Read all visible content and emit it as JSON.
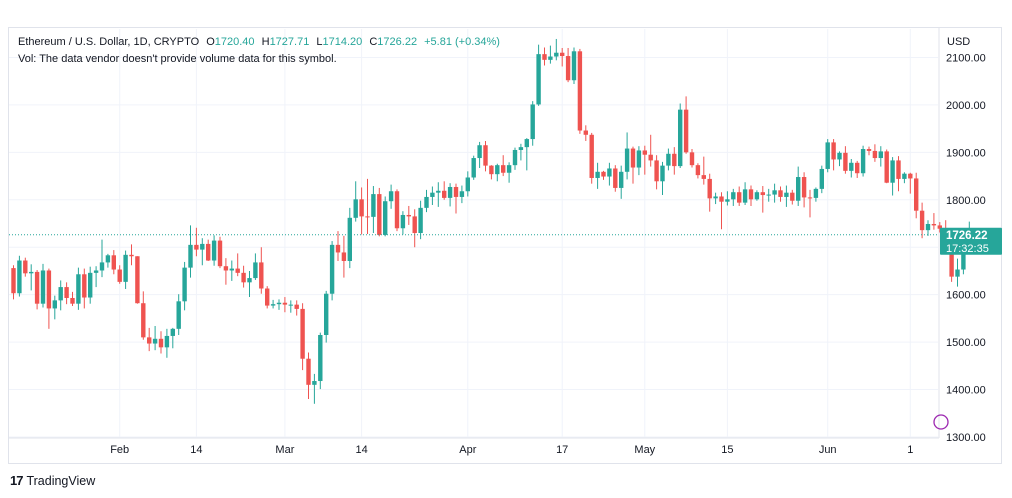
{
  "header": {
    "symbol_title": "Ethereum / U.S. Dollar, 1D, CRYPTO",
    "open_label": "O",
    "open_value": "1720.40",
    "high_label": "H",
    "high_value": "1727.71",
    "low_label": "L",
    "low_value": "1714.20",
    "close_label": "C",
    "close_value": "1726.22",
    "change": "+5.81 (+0.34%)",
    "volume_note": "Vol: The data vendor doesn't provide volume data for this symbol."
  },
  "price_axis": {
    "currency": "USD"
  },
  "last_price": {
    "value": "1726.22",
    "countdown": "17:32:35"
  },
  "footer": {
    "logo_glyph": "17",
    "brand": "TradingView"
  },
  "colors": {
    "up": "#26a69a",
    "down": "#ef5350",
    "grid": "#f0f3fa",
    "axis_text": "#131722",
    "label_bg": "#26a69a"
  },
  "chart_data": {
    "type": "candlestick",
    "title": "Ethereum / U.S. Dollar, 1D, CRYPTO",
    "ylabel": "USD",
    "ylim": [
      1300,
      2160
    ],
    "y_ticks": [
      "1300.00",
      "1400.00",
      "1500.00",
      "1600.00",
      "1700.00",
      "1800.00",
      "1900.00",
      "2000.00",
      "2100.00"
    ],
    "x_ticks": [
      {
        "label": "Feb",
        "index": 18
      },
      {
        "label": "14",
        "index": 31
      },
      {
        "label": "Mar",
        "index": 46
      },
      {
        "label": "14",
        "index": 59
      },
      {
        "label": "Apr",
        "index": 77
      },
      {
        "label": "17",
        "index": 93
      },
      {
        "label": "May",
        "index": 107
      },
      {
        "label": "15",
        "index": 121
      },
      {
        "label": "Jun",
        "index": 138
      },
      {
        "label": "1",
        "index": 152
      }
    ],
    "last_close": 1726.22,
    "candles_ohlc": [
      [
        1656,
        1662,
        1590,
        1603
      ],
      [
        1603,
        1682,
        1596,
        1672
      ],
      [
        1672,
        1678,
        1638,
        1645
      ],
      [
        1645,
        1664,
        1609,
        1648
      ],
      [
        1648,
        1652,
        1569,
        1581
      ],
      [
        1581,
        1665,
        1573,
        1651
      ],
      [
        1651,
        1655,
        1528,
        1571
      ],
      [
        1571,
        1598,
        1548,
        1588
      ],
      [
        1588,
        1630,
        1567,
        1616
      ],
      [
        1616,
        1626,
        1580,
        1593
      ],
      [
        1593,
        1606,
        1576,
        1581
      ],
      [
        1581,
        1657,
        1568,
        1643
      ],
      [
        1643,
        1655,
        1571,
        1594
      ],
      [
        1594,
        1659,
        1581,
        1646
      ],
      [
        1646,
        1660,
        1616,
        1651
      ],
      [
        1651,
        1716,
        1637,
        1668
      ],
      [
        1668,
        1686,
        1657,
        1683
      ],
      [
        1683,
        1694,
        1643,
        1653
      ],
      [
        1653,
        1662,
        1623,
        1627
      ],
      [
        1627,
        1693,
        1612,
        1684
      ],
      [
        1684,
        1706,
        1662,
        1681
      ],
      [
        1681,
        1681,
        1581,
        1582
      ],
      [
        1582,
        1607,
        1505,
        1510
      ],
      [
        1510,
        1530,
        1481,
        1497
      ],
      [
        1497,
        1534,
        1483,
        1507
      ],
      [
        1507,
        1523,
        1476,
        1489
      ],
      [
        1489,
        1528,
        1467,
        1513
      ],
      [
        1513,
        1530,
        1487,
        1528
      ],
      [
        1528,
        1601,
        1515,
        1586
      ],
      [
        1586,
        1669,
        1567,
        1657
      ],
      [
        1657,
        1746,
        1636,
        1705
      ],
      [
        1705,
        1741,
        1681,
        1695
      ],
      [
        1695,
        1719,
        1662,
        1707
      ],
      [
        1707,
        1716,
        1671,
        1672
      ],
      [
        1672,
        1725,
        1661,
        1714
      ],
      [
        1714,
        1722,
        1656,
        1660
      ],
      [
        1660,
        1677,
        1621,
        1651
      ],
      [
        1651,
        1672,
        1629,
        1655
      ],
      [
        1655,
        1687,
        1639,
        1646
      ],
      [
        1646,
        1661,
        1615,
        1626
      ],
      [
        1626,
        1650,
        1595,
        1635
      ],
      [
        1635,
        1687,
        1631,
        1668
      ],
      [
        1668,
        1700,
        1602,
        1613
      ],
      [
        1613,
        1618,
        1571,
        1577
      ],
      [
        1577,
        1589,
        1571,
        1580
      ],
      [
        1580,
        1590,
        1568,
        1583
      ],
      [
        1583,
        1595,
        1563,
        1579
      ],
      [
        1579,
        1588,
        1562,
        1579
      ],
      [
        1579,
        1588,
        1556,
        1570
      ],
      [
        1570,
        1582,
        1441,
        1465
      ],
      [
        1465,
        1478,
        1380,
        1410
      ],
      [
        1410,
        1433,
        1370,
        1418
      ],
      [
        1418,
        1520,
        1401,
        1515
      ],
      [
        1515,
        1608,
        1499,
        1602
      ],
      [
        1602,
        1713,
        1588,
        1705
      ],
      [
        1705,
        1734,
        1671,
        1689
      ],
      [
        1689,
        1724,
        1636,
        1671
      ],
      [
        1671,
        1783,
        1656,
        1762
      ],
      [
        1762,
        1839,
        1754,
        1801
      ],
      [
        1801,
        1826,
        1727,
        1765
      ],
      [
        1765,
        1844,
        1728,
        1764
      ],
      [
        1764,
        1829,
        1730,
        1812
      ],
      [
        1812,
        1825,
        1723,
        1726
      ],
      [
        1726,
        1807,
        1723,
        1797
      ],
      [
        1797,
        1832,
        1781,
        1818
      ],
      [
        1818,
        1822,
        1734,
        1740
      ],
      [
        1740,
        1776,
        1727,
        1768
      ],
      [
        1768,
        1787,
        1747,
        1765
      ],
      [
        1765,
        1780,
        1700,
        1730
      ],
      [
        1730,
        1798,
        1717,
        1783
      ],
      [
        1783,
        1821,
        1774,
        1806
      ],
      [
        1806,
        1828,
        1789,
        1815
      ],
      [
        1815,
        1837,
        1785,
        1819
      ],
      [
        1819,
        1839,
        1800,
        1804
      ],
      [
        1804,
        1835,
        1786,
        1827
      ],
      [
        1827,
        1834,
        1771,
        1806
      ],
      [
        1806,
        1830,
        1793,
        1818
      ],
      [
        1818,
        1860,
        1807,
        1847
      ],
      [
        1847,
        1893,
        1842,
        1888
      ],
      [
        1888,
        1922,
        1867,
        1915
      ],
      [
        1915,
        1924,
        1860,
        1872
      ],
      [
        1872,
        1873,
        1843,
        1854
      ],
      [
        1854,
        1876,
        1839,
        1873
      ],
      [
        1873,
        1894,
        1850,
        1857
      ],
      [
        1857,
        1879,
        1836,
        1873
      ],
      [
        1873,
        1910,
        1863,
        1905
      ],
      [
        1905,
        1918,
        1883,
        1911
      ],
      [
        1911,
        1930,
        1862,
        1928
      ],
      [
        1928,
        2008,
        1914,
        2001
      ],
      [
        2001,
        2127,
        1998,
        2107
      ],
      [
        2107,
        2121,
        2083,
        2095
      ],
      [
        2095,
        2125,
        2087,
        2102
      ],
      [
        2102,
        2139,
        2094,
        2110
      ],
      [
        2110,
        2120,
        2081,
        2103
      ],
      [
        2103,
        2120,
        2048,
        2052
      ],
      [
        2052,
        2121,
        2044,
        2113
      ],
      [
        2113,
        2118,
        1939,
        1946
      ],
      [
        1946,
        1957,
        1924,
        1937
      ],
      [
        1937,
        1941,
        1834,
        1846
      ],
      [
        1846,
        1878,
        1823,
        1859
      ],
      [
        1859,
        1861,
        1842,
        1849
      ],
      [
        1849,
        1878,
        1830,
        1866
      ],
      [
        1866,
        1873,
        1817,
        1825
      ],
      [
        1825,
        1872,
        1802,
        1859
      ],
      [
        1859,
        1942,
        1843,
        1908
      ],
      [
        1908,
        1912,
        1834,
        1868
      ],
      [
        1868,
        1913,
        1852,
        1904
      ],
      [
        1904,
        1914,
        1853,
        1895
      ],
      [
        1895,
        1937,
        1870,
        1883
      ],
      [
        1883,
        1894,
        1822,
        1839
      ],
      [
        1839,
        1880,
        1810,
        1872
      ],
      [
        1872,
        1908,
        1862,
        1897
      ],
      [
        1897,
        1911,
        1853,
        1871
      ],
      [
        1871,
        2003,
        1867,
        1990
      ],
      [
        1990,
        2018,
        1897,
        1900
      ],
      [
        1900,
        1907,
        1868,
        1873
      ],
      [
        1873,
        1877,
        1845,
        1852
      ],
      [
        1852,
        1891,
        1832,
        1844
      ],
      [
        1844,
        1855,
        1775,
        1803
      ],
      [
        1803,
        1815,
        1791,
        1807
      ],
      [
        1807,
        1816,
        1738,
        1796
      ],
      [
        1796,
        1818,
        1788,
        1801
      ],
      [
        1801,
        1823,
        1787,
        1816
      ],
      [
        1816,
        1828,
        1787,
        1794
      ],
      [
        1794,
        1837,
        1789,
        1822
      ],
      [
        1822,
        1830,
        1787,
        1801
      ],
      [
        1801,
        1820,
        1798,
        1816
      ],
      [
        1816,
        1829,
        1773,
        1810
      ],
      [
        1810,
        1823,
        1796,
        1811
      ],
      [
        1811,
        1834,
        1794,
        1820
      ],
      [
        1820,
        1828,
        1796,
        1806
      ],
      [
        1806,
        1830,
        1785,
        1815
      ],
      [
        1815,
        1821,
        1790,
        1798
      ],
      [
        1798,
        1870,
        1787,
        1848
      ],
      [
        1848,
        1858,
        1784,
        1805
      ],
      [
        1805,
        1821,
        1763,
        1804
      ],
      [
        1804,
        1826,
        1796,
        1823
      ],
      [
        1823,
        1872,
        1814,
        1865
      ],
      [
        1865,
        1928,
        1858,
        1921
      ],
      [
        1921,
        1928,
        1862,
        1885
      ],
      [
        1885,
        1902,
        1871,
        1899
      ],
      [
        1899,
        1913,
        1855,
        1861
      ],
      [
        1861,
        1886,
        1847,
        1878
      ],
      [
        1878,
        1882,
        1846,
        1856
      ],
      [
        1856,
        1914,
        1849,
        1907
      ],
      [
        1907,
        1912,
        1894,
        1903
      ],
      [
        1903,
        1917,
        1880,
        1888
      ],
      [
        1888,
        1913,
        1870,
        1902
      ],
      [
        1902,
        1906,
        1835,
        1836
      ],
      [
        1836,
        1890,
        1809,
        1883
      ],
      [
        1883,
        1892,
        1818,
        1844
      ],
      [
        1844,
        1858,
        1835,
        1855
      ],
      [
        1855,
        1857,
        1813,
        1845
      ],
      [
        1845,
        1857,
        1761,
        1777
      ],
      [
        1777,
        1794,
        1719,
        1736
      ],
      [
        1736,
        1757,
        1724,
        1749
      ],
      [
        1749,
        1772,
        1737,
        1746
      ],
      [
        1746,
        1753,
        1731,
        1739
      ],
      [
        1739,
        1757,
        1700,
        1717
      ],
      [
        1717,
        1728,
        1627,
        1638
      ],
      [
        1638,
        1676,
        1617,
        1653
      ],
      [
        1653,
        1722,
        1643,
        1710
      ],
      [
        1710,
        1754,
        1707,
        1720
      ],
      [
        1720,
        1727,
        1714,
        1726
      ]
    ]
  }
}
